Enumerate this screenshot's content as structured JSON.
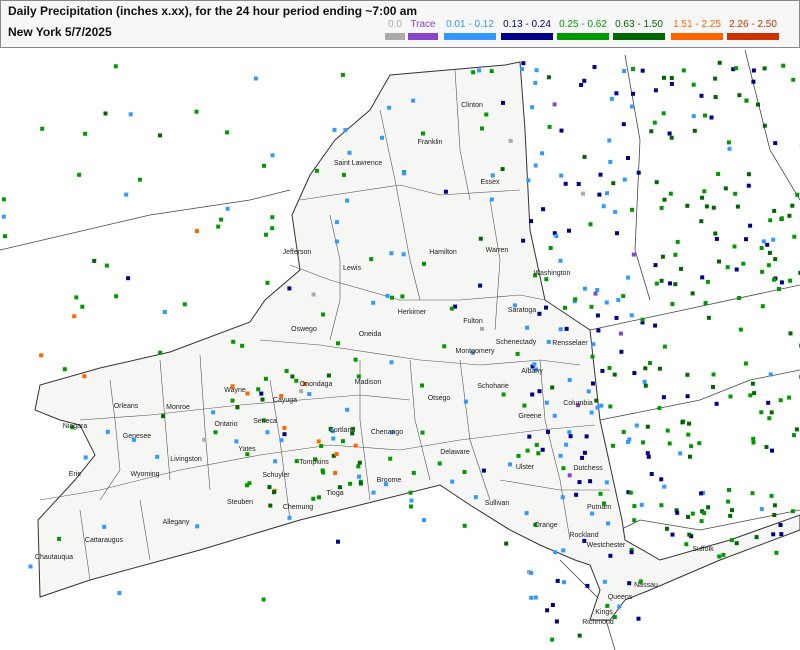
{
  "header": {
    "title": "Daily Precipitation (inches  x.xx),  for the 24 hour period ending ~7:00 am",
    "subtitle": "New York 5/7/2025"
  },
  "legend": [
    {
      "label": "0.0",
      "color": "#aaaaaa"
    },
    {
      "label": "Trace",
      "color": "#8844cc"
    },
    {
      "label": "0.01 - 0.12",
      "color": "#3399ff"
    },
    {
      "label": "0.13 - 0.24",
      "color": "#000088"
    },
    {
      "label": "0.25 - 0.62",
      "color": "#009900"
    },
    {
      "label": "0.63 - 1.50",
      "color": "#006600"
    },
    {
      "label": "1.51 - 2.25",
      "color": "#ff6600"
    },
    {
      "label": "2.26 - 2.50",
      "color": "#cc3300"
    }
  ],
  "counties": [
    "Saint Lawrence",
    "Clinton",
    "Franklin",
    "Essex",
    "Jefferson",
    "Lewis",
    "Hamilton",
    "Warren",
    "Washington",
    "Herkimer",
    "Oswego",
    "Oneida",
    "Fulton",
    "Saratoga",
    "Schenectady",
    "Montgomery",
    "Rensselaer",
    "Albany",
    "Schoharie",
    "Columbia",
    "Madison",
    "Onondaga",
    "Wayne",
    "Cayuga",
    "Orleans",
    "Monroe",
    "Niagara",
    "Genesee",
    "Ontario",
    "Seneca",
    "Yates",
    "Livingston",
    "Wyoming",
    "Erie",
    "Cortland",
    "Chenango",
    "Otsego",
    "Delaware",
    "Greene",
    "Ulster",
    "Dutchess",
    "Schuyler",
    "Tompkins",
    "Broome",
    "Tioga",
    "Chemung",
    "Steuben",
    "Allegany",
    "Cattaraugus",
    "Chautauqua",
    "Sullivan",
    "Orange",
    "Putnam",
    "Rockland",
    "Westchester",
    "Suffolk",
    "Nassau",
    "Queens",
    "Kings",
    "Richmond"
  ]
}
